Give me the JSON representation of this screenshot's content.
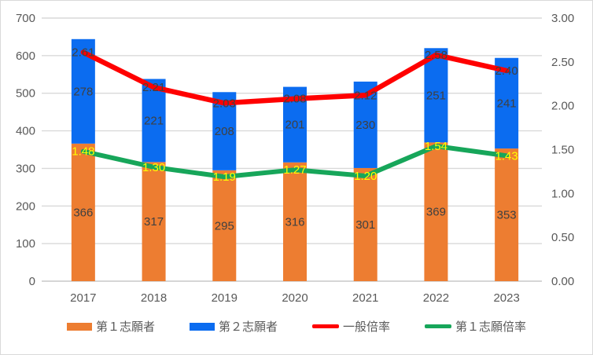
{
  "chart_data": {
    "type": "combo",
    "title": "",
    "categories": [
      "2017",
      "2018",
      "2019",
      "2020",
      "2021",
      "2022",
      "2023"
    ],
    "series": [
      {
        "name": "第１志願者",
        "type": "bar",
        "stack": "applicants",
        "axis": "left",
        "color": "#ED7D31",
        "label_color": "#404040",
        "values": [
          366,
          317,
          295,
          316,
          301,
          369,
          353
        ]
      },
      {
        "name": "第２志願者",
        "type": "bar",
        "stack": "applicants",
        "axis": "left",
        "color": "#0B6CF0",
        "label_color": "#404040",
        "values": [
          278,
          221,
          208,
          201,
          230,
          251,
          241
        ]
      },
      {
        "name": "一般倍率",
        "type": "line",
        "axis": "right",
        "color": "#FF0000",
        "label_color": "#404040",
        "label_format": "0.00",
        "values": [
          2.61,
          2.21,
          2.03,
          2.08,
          2.12,
          2.58,
          2.4
        ]
      },
      {
        "name": "第１志願倍率",
        "type": "line",
        "axis": "right",
        "color": "#17A65A",
        "label_color": "#FFFF00",
        "label_format": "0.00",
        "values": [
          1.48,
          1.3,
          1.19,
          1.27,
          1.2,
          1.54,
          1.43
        ]
      }
    ],
    "left_axis": {
      "min": 0,
      "max": 700,
      "tick_step": 100,
      "ticks": [
        "0",
        "100",
        "200",
        "300",
        "400",
        "500",
        "600",
        "700"
      ]
    },
    "right_axis": {
      "min": 0.0,
      "max": 3.0,
      "tick_step": 0.5,
      "ticks": [
        "0.00",
        "0.50",
        "1.00",
        "1.50",
        "2.00",
        "2.50",
        "3.00"
      ]
    },
    "grid": true,
    "legend_position": "bottom"
  },
  "colors": {
    "background": "#FFFFFF",
    "border": "#D9D9D9",
    "gridline": "#D9D9D9",
    "axis_line": "#C9C9C9",
    "axis_text": "#595959"
  }
}
